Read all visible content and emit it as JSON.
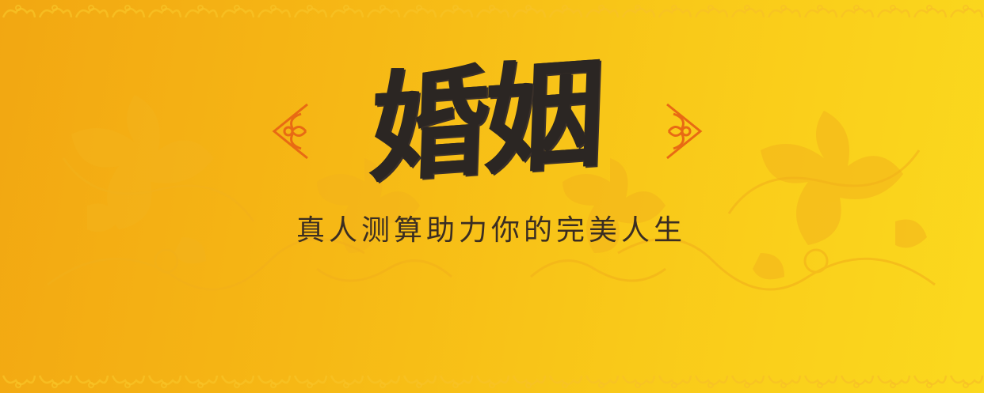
{
  "banner": {
    "title": "婚姻",
    "subtitle": "真人测算助力你的完美人生"
  },
  "icons": {
    "ornament_left": "cloud-scroll-ornament-icon",
    "ornament_right": "cloud-scroll-ornament-icon",
    "border_pattern": "auspicious-cloud-border-pattern",
    "background_motif": "peony-vine-floral-pattern"
  },
  "colors": {
    "background_start": "#f2a712",
    "background_end": "#fbd91e",
    "title_text": "#2b2623",
    "subtitle_text": "#3a2d22",
    "ornament": "#e86a14",
    "pattern": "#f3b31c"
  }
}
